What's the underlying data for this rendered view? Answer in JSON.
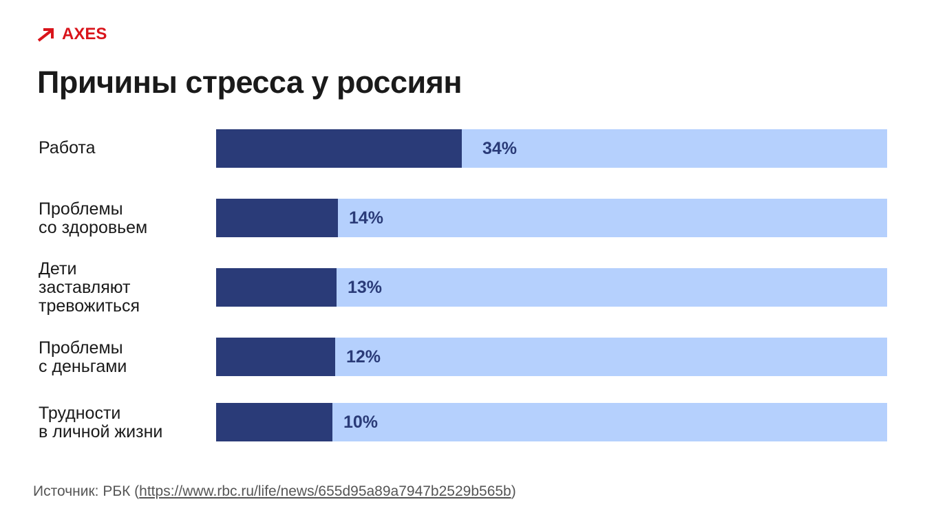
{
  "brand": {
    "name": "AXES",
    "color": "#d9141b"
  },
  "colors": {
    "bar_fill": "#2a3b78",
    "bar_track": "#b5d0fd",
    "value_text": "#2a3b78"
  },
  "chart_data": {
    "type": "bar",
    "orientation": "horizontal",
    "title": "Причины стресса у россиян",
    "categories": [
      "Работа",
      "Проблемы\nсо здоровьем",
      "Дети\nзаставляют\nтревожиться",
      "Проблемы\nс деньгами",
      "Трудности\nв личной жизни"
    ],
    "values": [
      34,
      14,
      13,
      12,
      10
    ],
    "value_labels": [
      "34%",
      "14%",
      "13%",
      "12%",
      "10%"
    ],
    "unit": "%",
    "grid": false,
    "legend": "none"
  },
  "source": {
    "prefix": "Источник: РБК (",
    "link": "https://www.rbc.ru/life/news/655d95a89a7947b2529b565b",
    "suffix": ")"
  }
}
